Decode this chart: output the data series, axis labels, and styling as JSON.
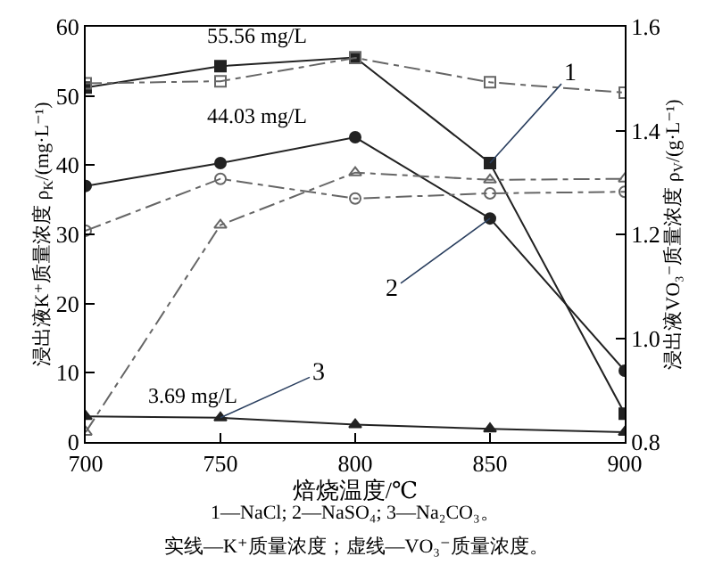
{
  "chart_data": {
    "type": "line",
    "xlabel": "焙烧温度/℃",
    "ylabel": "浸出液K⁺质量浓度 ρ$_{K}$/(mg·L⁻¹)",
    "y2label": "浸出液VO₃⁻质量浓度 ρ$_{V}$/(g·L⁻¹)",
    "x": [
      700,
      750,
      800,
      850,
      900
    ],
    "series": [
      {
        "color": "#222222",
        "marker": "square",
        "line_style": "solid",
        "values": [
          51.2,
          54.3,
          55.56,
          40.3,
          4.1
        ]
      },
      {
        "color": "#222222",
        "marker": "circle",
        "line_style": "solid",
        "values": [
          37,
          40.3,
          44.03,
          32.3,
          10.3
        ]
      },
      {
        "color": "#222222",
        "marker": "triangle",
        "line_style": "solid",
        "values": [
          3.69,
          3.5,
          2.5,
          1.9,
          1.4
        ]
      },
      {
        "color": "#666666",
        "marker": "square-open",
        "line_style": "dashdot",
        "axis": "y2",
        "values": [
          1.491,
          1.495,
          1.54,
          1.493,
          1.473
        ]
      },
      {
        "color": "#666666",
        "marker": "circle-open",
        "line_style": "dashdot",
        "axis": "y2",
        "values": [
          1.207,
          1.307,
          1.269,
          1.279,
          1.282
        ]
      },
      {
        "color": "#666666",
        "marker": "triangle-open",
        "line_style": "dashdot",
        "axis": "y2",
        "values": [
          0.819,
          1.218,
          1.319,
          1.305,
          1.307
        ]
      }
    ],
    "xlim": [
      700,
      900
    ],
    "xticks": [
      700,
      750,
      800,
      850,
      900
    ],
    "ylim": [
      0,
      60
    ],
    "yticks": [
      0,
      10,
      20,
      30,
      40,
      50,
      60
    ],
    "y2lim": [
      0.8,
      1.6
    ],
    "y2ticks": [
      {
        "value": 0.8,
        "label": "0.8"
      },
      {
        "value": 1.0,
        "label": "1.0"
      },
      {
        "value": 1.2,
        "label": "1.2"
      },
      {
        "value": 1.4,
        "label": "1.4"
      },
      {
        "value": 1.6,
        "label": "1.6"
      }
    ],
    "annotations": [
      {
        "text": "55.56 mg/L",
        "x": 800,
        "y": 55.56
      },
      {
        "text": "44.03 mg/L",
        "x": 800,
        "y": 44.03
      },
      {
        "text": "3.69 mg/L",
        "x": 700,
        "y": 3.69
      },
      {
        "text": "1",
        "x": 850,
        "y": 40.3
      },
      {
        "text": "2",
        "x": 850,
        "y": 32.3
      },
      {
        "text": "3",
        "x": 750,
        "y": 3.5
      },
      "1—NaCl; 2—NaSO₄; 3—Na₂CO₃。",
      "实线—K⁺质量浓度；虚线—VO₃⁻质量浓度。"
    ]
  }
}
